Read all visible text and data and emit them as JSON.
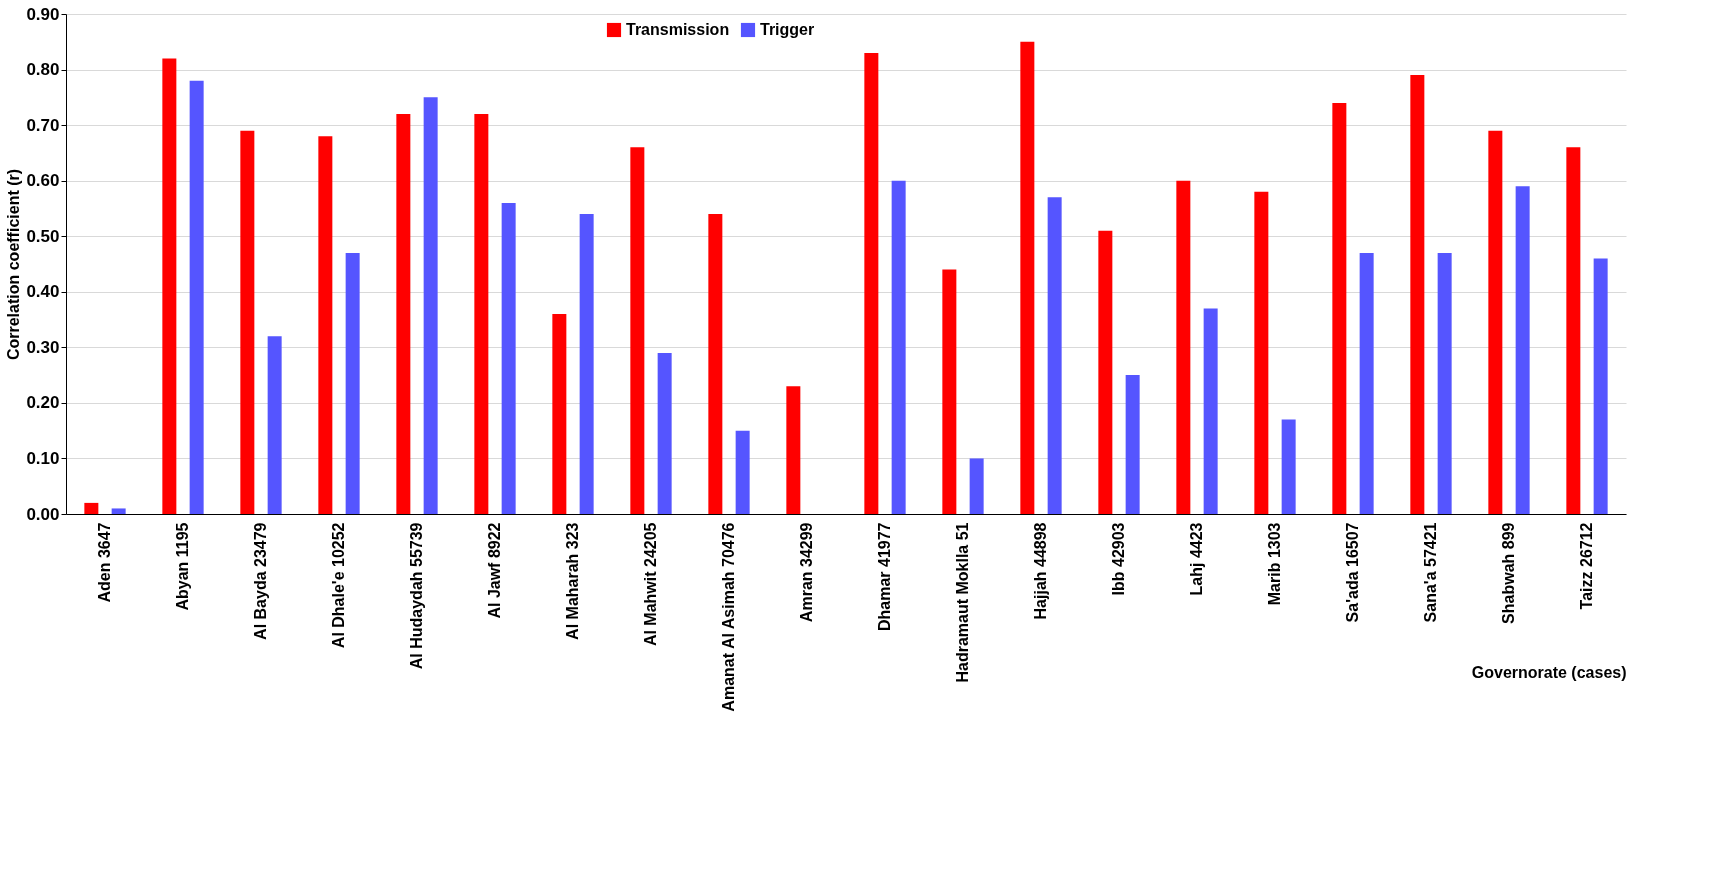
{
  "chart_data": {
    "type": "bar",
    "xlabel": "Governorate (cases)",
    "ylabel": "Correlation coefficient (r)",
    "categories": [
      "Aden 3647",
      "Abyan 1195",
      "Al Bayda 23479",
      "Al Dhale'e 10252",
      "Al Hudaydah 55739",
      "Al Jawf 8922",
      "Al Maharah 323",
      "Al Mahwit 24205",
      "Amanat Al Asimah 70476",
      "Amran 34299",
      "Dhamar  41977",
      "Hadramaut Moklla 51",
      "Hajjah 44898",
      "Ibb 42903",
      "Lahj 4423",
      "Marib 1303",
      "Sa'ada 16507",
      "Sana'a 57421",
      "Shabwah 899",
      "Taizz 26712"
    ],
    "series": [
      {
        "name": "Transmission",
        "color": "#ff0000",
        "values": [
          0.02,
          0.82,
          0.69,
          0.68,
          0.72,
          0.72,
          0.36,
          0.66,
          0.54,
          0.23,
          0.83,
          0.44,
          0.85,
          0.51,
          0.6,
          0.58,
          0.74,
          0.79,
          0.69,
          0.66
        ]
      },
      {
        "name": "Trigger",
        "color": "#5555ff",
        "values": [
          0.01,
          0.78,
          0.32,
          0.47,
          0.75,
          0.56,
          0.54,
          0.29,
          0.15,
          null,
          0.6,
          0.1,
          0.57,
          0.25,
          0.37,
          0.17,
          0.47,
          0.47,
          0.59,
          0.46
        ]
      }
    ],
    "ylim": [
      0,
      0.9
    ],
    "yticks": [
      {
        "value": 0,
        "label": "0.00"
      },
      {
        "value": 0.1,
        "label": "0.10"
      },
      {
        "value": 0.2,
        "label": "0.20"
      },
      {
        "value": 0.3,
        "label": "0.30"
      },
      {
        "value": 0.4,
        "label": "0.40"
      },
      {
        "value": 0.5,
        "label": "0.50"
      },
      {
        "value": 0.6,
        "label": "0.60"
      },
      {
        "value": 0.7,
        "label": "0.70"
      },
      {
        "value": 0.8,
        "label": "0.80"
      },
      {
        "value": 0.9,
        "label": "0.90"
      }
    ],
    "grid": "y",
    "legend": "top"
  }
}
